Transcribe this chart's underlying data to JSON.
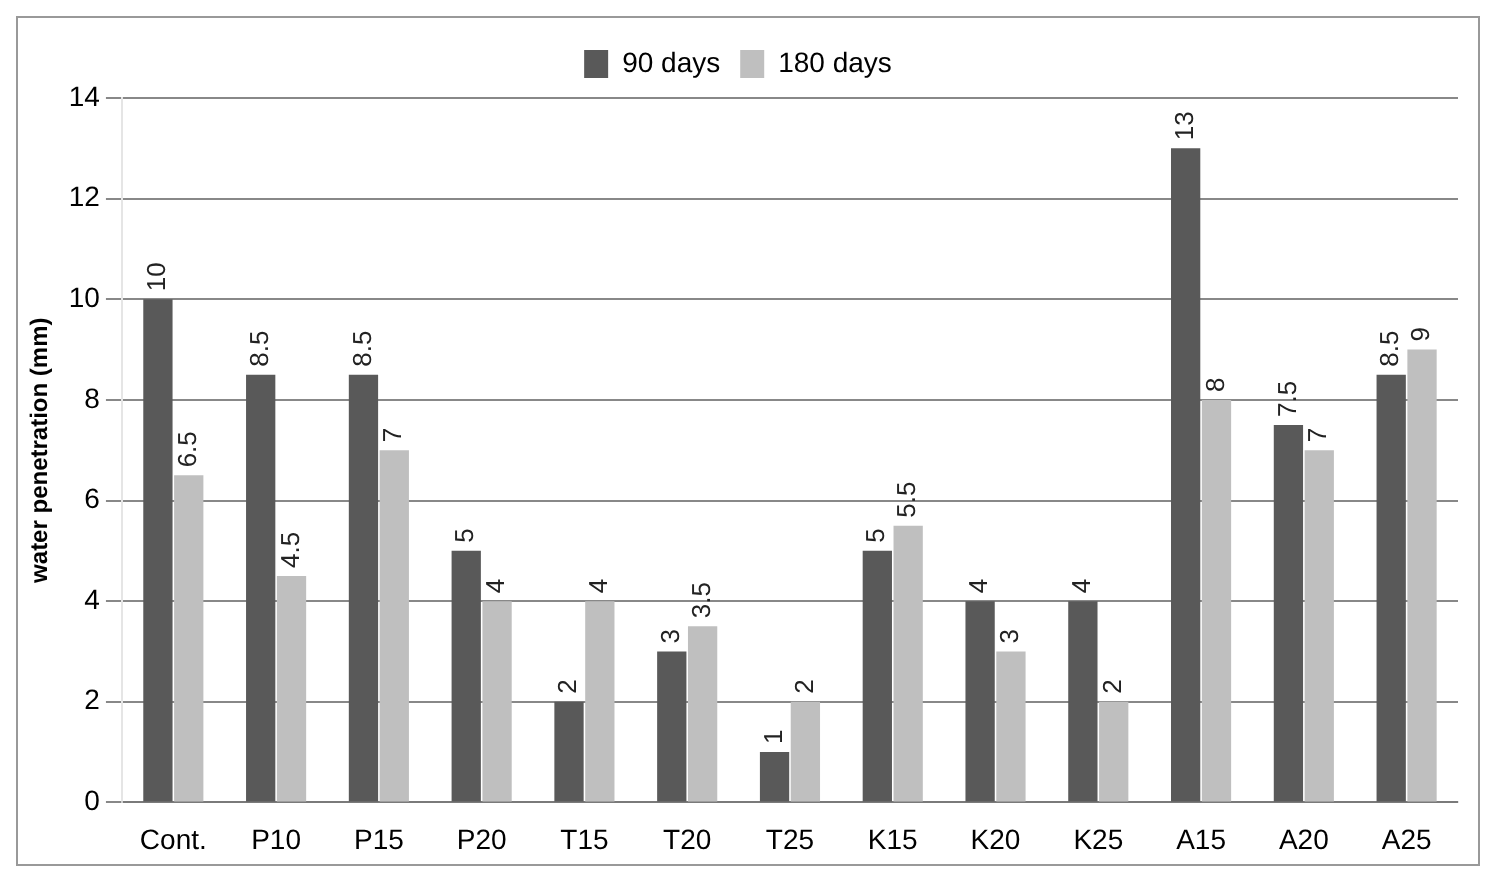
{
  "chart_data": {
    "type": "bar",
    "ylabel": "water penetration (mm)",
    "categories": [
      "Cont.",
      "P10",
      "P15",
      "P20",
      "T15",
      "T20",
      "T25",
      "K15",
      "K20",
      "K25",
      "A15",
      "A20",
      "A25"
    ],
    "series": [
      {
        "name": "90 days",
        "color": "#595959",
        "values": [
          10,
          8.5,
          8.5,
          5,
          2,
          3,
          1,
          5,
          4,
          4,
          13,
          7.5,
          8.5
        ]
      },
      {
        "name": "180 days",
        "color": "#bfbfbf",
        "values": [
          6.5,
          4.5,
          7,
          4,
          4,
          3.5,
          2,
          5.5,
          3,
          2,
          8,
          7,
          9
        ]
      }
    ],
    "ylim": [
      0,
      14
    ],
    "yticks": [
      0,
      2,
      4,
      6,
      8,
      10,
      12,
      14
    ],
    "grid": "y",
    "legend": "top",
    "data_labels": true
  }
}
